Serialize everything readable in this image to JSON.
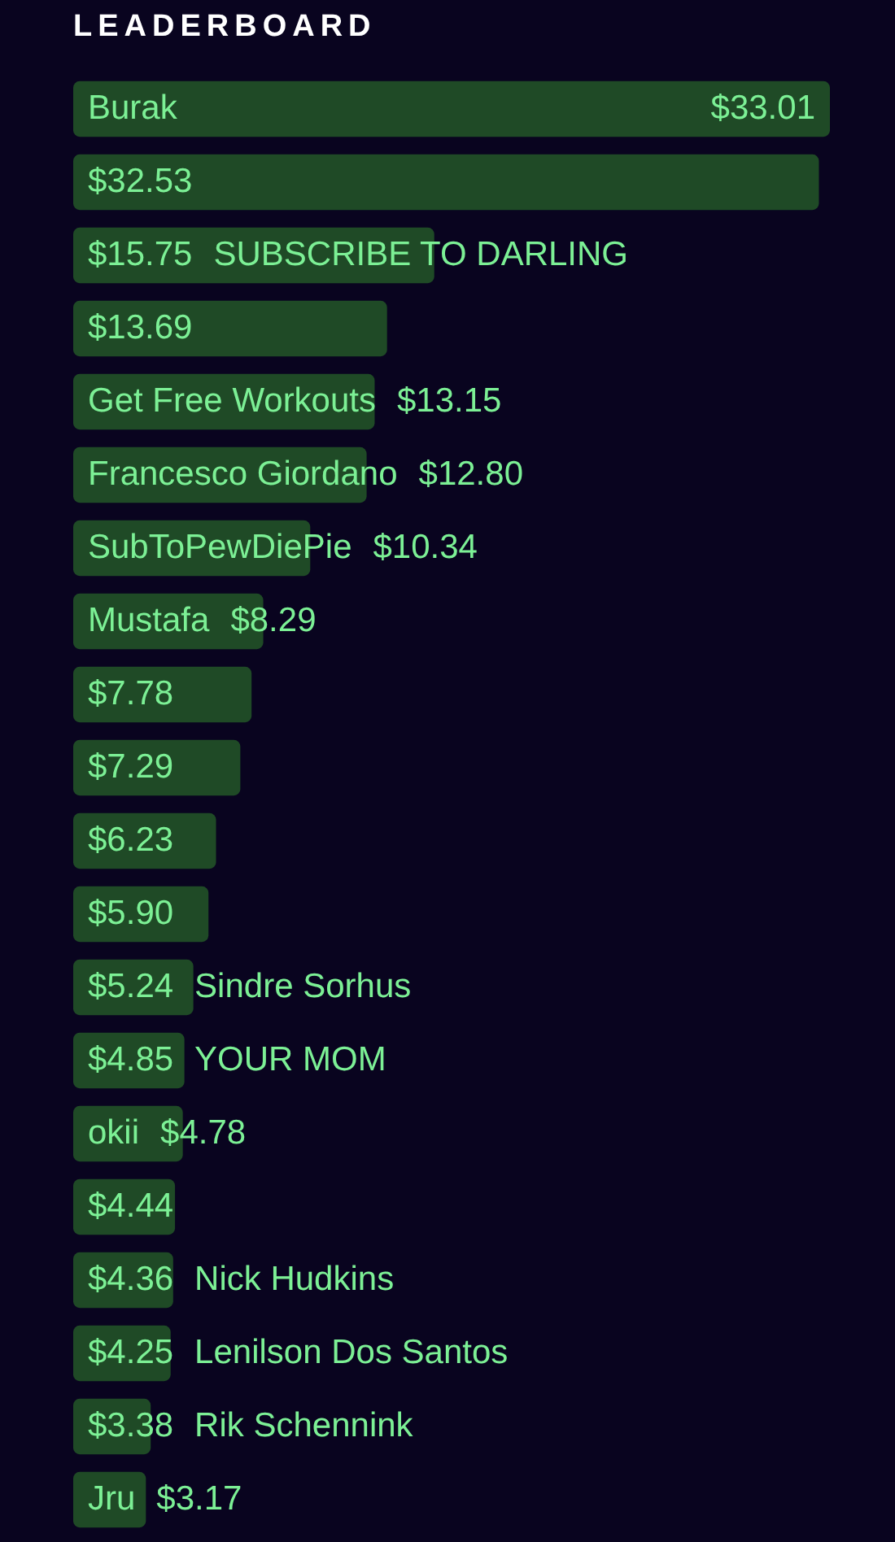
{
  "chart_data": {
    "type": "bar",
    "orientation": "horizontal",
    "title": "LEADERBOARD",
    "categories": [
      "Burak",
      null,
      "SUBSCRIBE TO DARLING",
      null,
      "Get Free Workouts",
      "Francesco Giordano",
      "SubToPewDiePie",
      "Mustafa",
      null,
      null,
      null,
      null,
      "Sindre Sorhus",
      "YOUR MOM",
      "okii",
      null,
      "Nick Hudkins",
      "Lenilson Dos Santos",
      "Rik Schennink",
      "Jru"
    ],
    "values": [
      33.01,
      32.53,
      15.75,
      13.69,
      13.15,
      12.8,
      10.34,
      8.29,
      7.78,
      7.29,
      6.23,
      5.9,
      5.24,
      4.85,
      4.78,
      4.44,
      4.36,
      4.25,
      3.38,
      3.17
    ],
    "value_labels": [
      "$33.01",
      "$32.53",
      "$15.75",
      "$13.69",
      "$13.15",
      "$12.80",
      "$10.34",
      "$8.29",
      "$7.78",
      "$7.29",
      "$6.23",
      "$5.90",
      "$5.24",
      "$4.85",
      "$4.78",
      "$4.44",
      "$4.36",
      "$4.25",
      "$3.38",
      "$3.17"
    ],
    "color": "#1f4a26",
    "tick_labels": "y"
  }
}
